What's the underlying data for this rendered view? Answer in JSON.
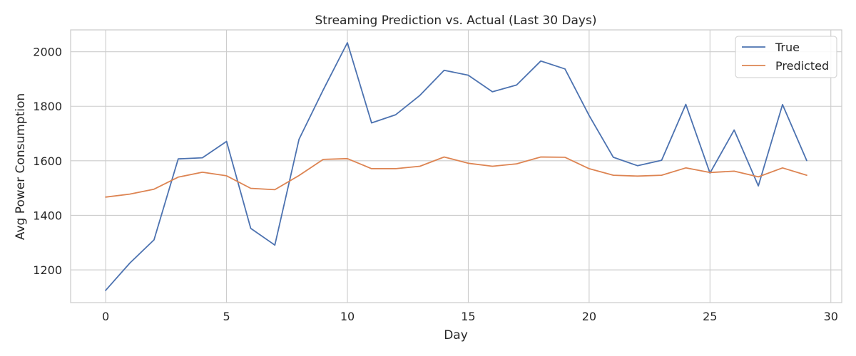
{
  "chart_data": {
    "type": "line",
    "title": "Streaming Prediction vs. Actual (Last 30 Days)",
    "xlabel": "Day",
    "ylabel": "Avg Power Consumption",
    "xlim": [
      -1.45,
      30.45
    ],
    "ylim": [
      1080,
      2080
    ],
    "xticks": [
      0,
      5,
      10,
      15,
      20,
      25,
      30
    ],
    "yticks": [
      1200,
      1400,
      1600,
      1800,
      2000
    ],
    "grid": true,
    "legend_position": "top-right",
    "x": [
      0,
      1,
      2,
      3,
      4,
      5,
      6,
      7,
      8,
      9,
      10,
      11,
      12,
      13,
      14,
      15,
      16,
      17,
      18,
      19,
      20,
      21,
      22,
      23,
      24,
      25,
      26,
      27,
      28,
      29
    ],
    "series": [
      {
        "name": "True",
        "color": "#4c72b0",
        "values": [
          1125,
          1225,
          1310,
          1607,
          1611,
          1671,
          1352,
          1291,
          1679,
          1860,
          2033,
          1739,
          1769,
          1840,
          1932,
          1914,
          1853,
          1878,
          1966,
          1937,
          1766,
          1613,
          1582,
          1602,
          1807,
          1555,
          1713,
          1508,
          1806,
          1601
        ]
      },
      {
        "name": "Predicted",
        "color": "#dd8452",
        "values": [
          1467,
          1478,
          1496,
          1540,
          1558,
          1545,
          1499,
          1494,
          1546,
          1605,
          1608,
          1571,
          1571,
          1580,
          1614,
          1591,
          1580,
          1589,
          1614,
          1613,
          1571,
          1547,
          1544,
          1547,
          1574,
          1557,
          1562,
          1541,
          1574,
          1547
        ]
      }
    ]
  }
}
